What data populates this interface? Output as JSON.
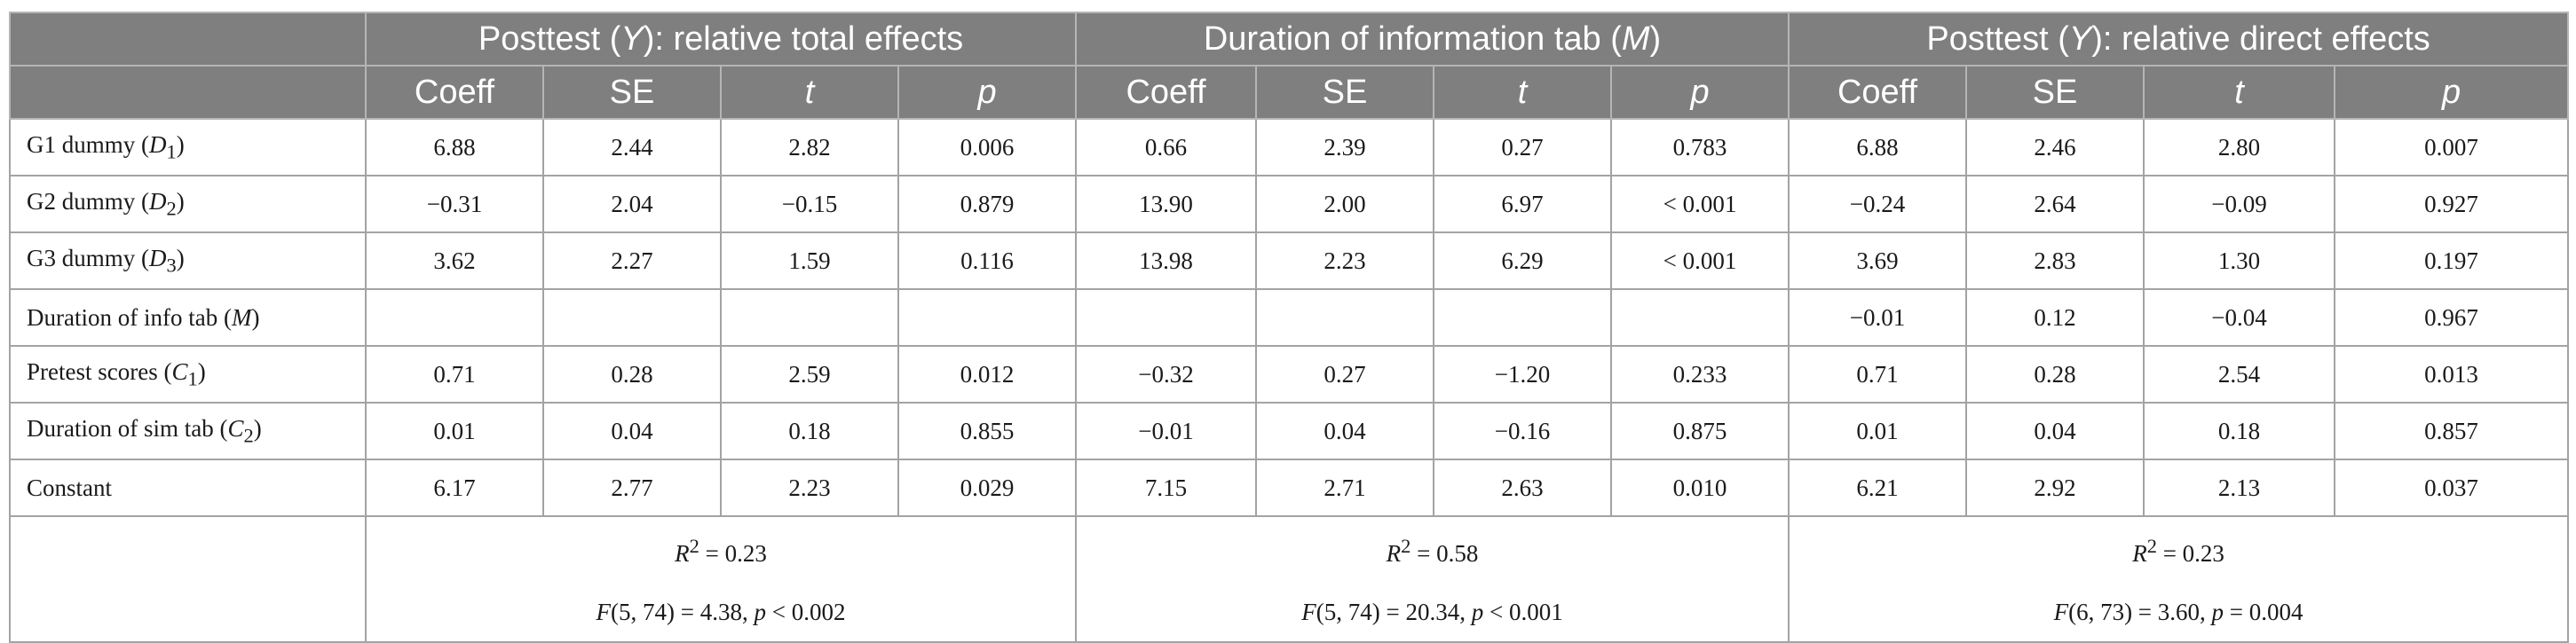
{
  "header": {
    "groups": [
      {
        "pre": "Posttest (",
        "var": "Y",
        "post": "): relative total effects"
      },
      {
        "pre": "Duration of information tab (",
        "var": "M",
        "post": ")"
      },
      {
        "pre": "Posttest (",
        "var": "Y",
        "post": "): relative direct effects"
      }
    ],
    "columns": [
      "Coeff",
      "SE",
      "t",
      "p"
    ]
  },
  "rows": [
    {
      "pre": "G1 dummy (",
      "var": "D",
      "sub": "1",
      "post": ")",
      "cells": [
        "6.88",
        "2.44",
        "2.82",
        "0.006",
        "0.66",
        "2.39",
        "0.27",
        "0.783",
        "6.88",
        "2.46",
        "2.80",
        "0.007"
      ]
    },
    {
      "pre": "G2 dummy (",
      "var": "D",
      "sub": "2",
      "post": ")",
      "cells": [
        "−0.31",
        "2.04",
        "−0.15",
        "0.879",
        "13.90",
        "2.00",
        "6.97",
        "< 0.001",
        "−0.24",
        "2.64",
        "−0.09",
        "0.927"
      ]
    },
    {
      "pre": "G3 dummy (",
      "var": "D",
      "sub": "3",
      "post": ")",
      "cells": [
        "3.62",
        "2.27",
        "1.59",
        "0.116",
        "13.98",
        "2.23",
        "6.29",
        "< 0.001",
        "3.69",
        "2.83",
        "1.30",
        "0.197"
      ]
    },
    {
      "pre": "Duration of info tab (",
      "var": "M",
      "sub": "",
      "post": ")",
      "cells": [
        "",
        "",
        "",
        "",
        "",
        "",
        "",
        "",
        "−0.01",
        "0.12",
        "−0.04",
        "0.967"
      ]
    },
    {
      "pre": "Pretest scores (",
      "var": "C",
      "sub": "1",
      "post": ")",
      "cells": [
        "0.71",
        "0.28",
        "2.59",
        "0.012",
        "−0.32",
        "0.27",
        "−1.20",
        "0.233",
        "0.71",
        "0.28",
        "2.54",
        "0.013"
      ]
    },
    {
      "pre": "Duration of sim tab (",
      "var": "C",
      "sub": "2",
      "post": ")",
      "cells": [
        "0.01",
        "0.04",
        "0.18",
        "0.855",
        "−0.01",
        "0.04",
        "−0.16",
        "0.875",
        "0.01",
        "0.04",
        "0.18",
        "0.857"
      ]
    },
    {
      "pre": "Constant",
      "var": "",
      "sub": "",
      "post": "",
      "cells": [
        "6.17",
        "2.77",
        "2.23",
        "0.029",
        "7.15",
        "2.71",
        "2.63",
        "0.010",
        "6.21",
        "2.92",
        "2.13",
        "0.037"
      ]
    }
  ],
  "fit": [
    {
      "r2": "R",
      "r2_eq": " = 0.23",
      "f": "F",
      "f_rest": "(5, 74) = 4.38, ",
      "p": "p",
      "p_rest": " < 0.002"
    },
    {
      "r2": "R",
      "r2_eq": " = 0.58",
      "f": "F",
      "f_rest": "(5, 74) = 20.34, ",
      "p": "p",
      "p_rest": " < 0.001"
    },
    {
      "r2": "R",
      "r2_eq": " = 0.23",
      "f": "F",
      "f_rest": "(6, 73) = 3.60, ",
      "p": "p",
      "p_rest": " = 0.004"
    }
  ],
  "colors": {
    "header_bg": "#7f7f7f",
    "header_text": "#ffffff",
    "border": "#a3a3a3"
  }
}
